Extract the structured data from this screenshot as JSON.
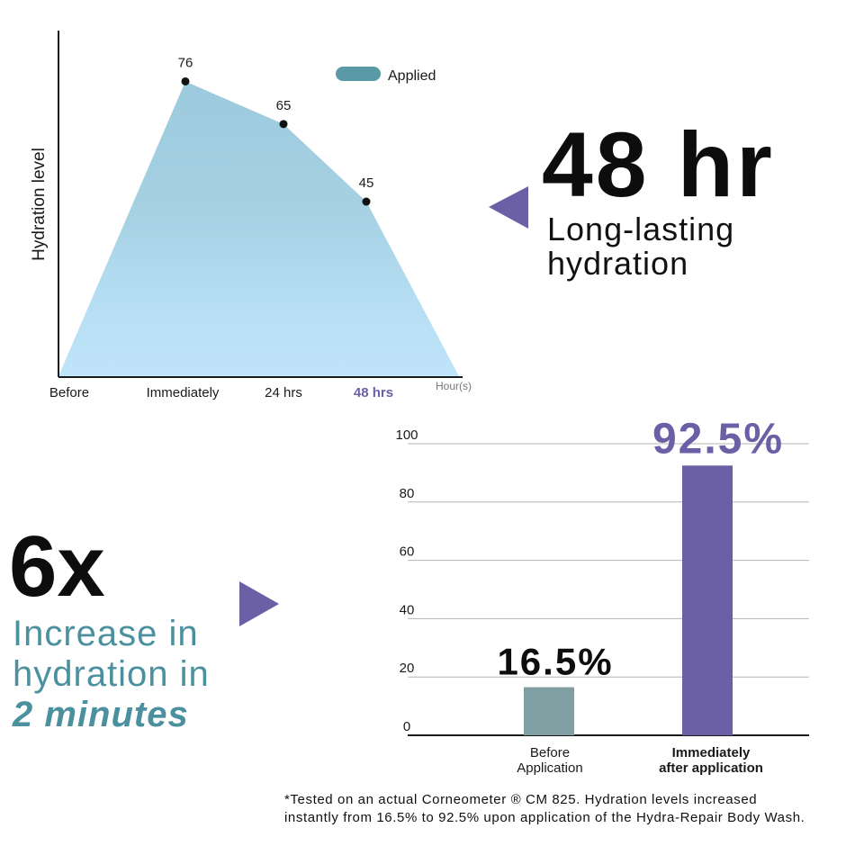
{
  "headline_top": {
    "big": "48 hr",
    "sub_line1": "Long-lasting",
    "sub_line2": "hydration"
  },
  "headline_bottom": {
    "big": "6x",
    "sub_line1": "Increase in",
    "sub_line2": "hydration in",
    "sub_line3": "2 minutes"
  },
  "footnote": {
    "line1": "*Tested on an actual Corneometer ® CM 825. Hydration levels increased",
    "line2": "instantly from 16.5% to 92.5% upon application of the Hydra-Repair Body Wash."
  },
  "colors": {
    "area_top": "#9dcbde",
    "area_bottom": "#bfe3f8",
    "legend": "#5a9aa6",
    "purple": "#6b5fa6",
    "gray_bar": "#7f9fa3",
    "teal_text": "#4a909e"
  },
  "chart_data": [
    {
      "type": "area",
      "title": "",
      "ylabel": "Hydration level",
      "xlabel": "Hour(s)",
      "categories": [
        "Before",
        "Immediately",
        "24 hrs",
        "48 hrs"
      ],
      "highlight_category": "48 hrs",
      "series": [
        {
          "name": "Applied",
          "values": [
            0,
            76,
            65,
            45
          ],
          "end_value": 0,
          "data_labels": [
            "76",
            "65",
            "45"
          ]
        }
      ],
      "ylim": [
        0,
        100
      ],
      "grid": false,
      "legend": "top"
    },
    {
      "type": "bar",
      "title": "",
      "categories": [
        "Before Application",
        "Immediately after application"
      ],
      "category_lines": [
        [
          "Before",
          "Application"
        ],
        [
          "Immediately",
          "after application"
        ]
      ],
      "values": [
        16.5,
        92.5
      ],
      "value_labels": [
        "16.5%",
        "92.5%"
      ],
      "yticks": [
        "0",
        "20",
        "40",
        "60",
        "80",
        "100"
      ],
      "ylim": [
        0,
        100
      ],
      "grid": true,
      "legend": "none"
    }
  ]
}
